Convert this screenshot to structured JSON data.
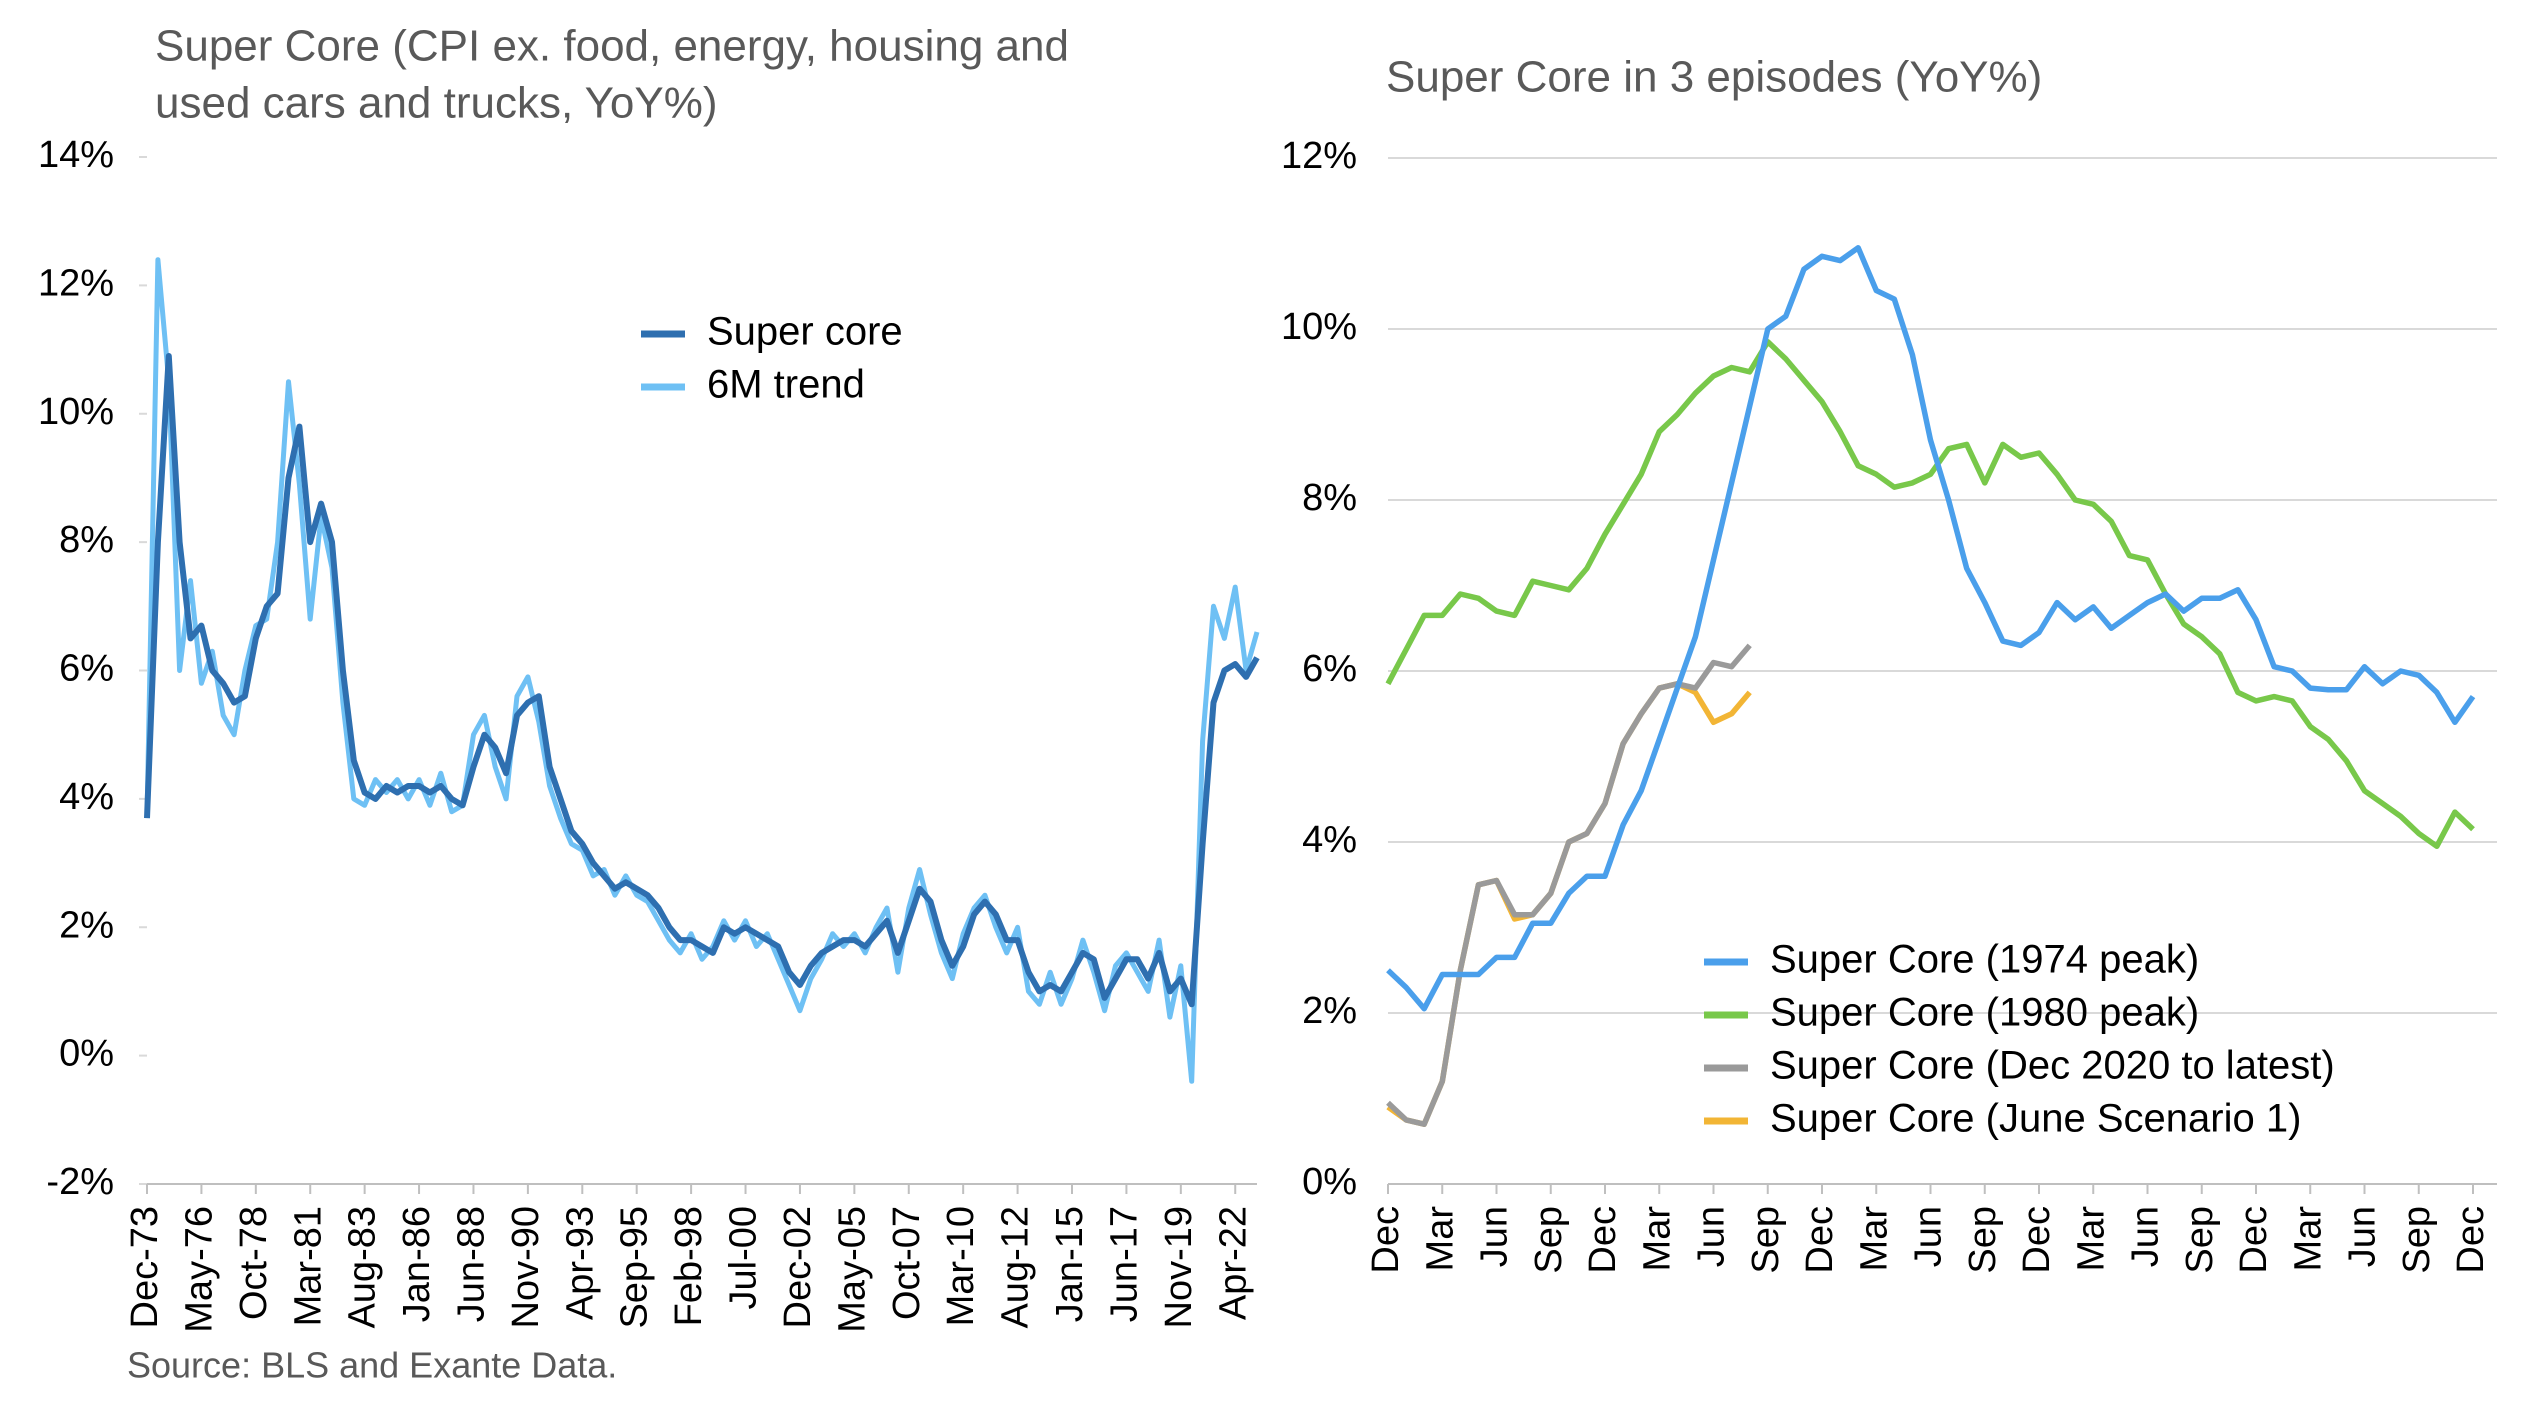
{
  "chart_data": [
    {
      "type": "line",
      "title": [
        "Super Core (CPI ex. food, energy, housing and",
        "used cars and trucks, YoY%)"
      ],
      "categories": [
        "Dec-73",
        null,
        null,
        null,
        null,
        "May-76",
        null,
        null,
        null,
        null,
        "Oct-78",
        null,
        null,
        null,
        null,
        "Mar-81",
        null,
        null,
        null,
        null,
        "Aug-83",
        null,
        null,
        null,
        null,
        "Jan-86",
        null,
        null,
        null,
        null,
        "Jun-88",
        null,
        null,
        null,
        null,
        "Nov-90",
        null,
        null,
        null,
        null,
        "Apr-93",
        null,
        null,
        null,
        null,
        "Sep-95",
        null,
        null,
        null,
        null,
        "Feb-98",
        null,
        null,
        null,
        null,
        "Jul-00",
        null,
        null,
        null,
        null,
        "Dec-02",
        null,
        null,
        null,
        null,
        "May-05",
        null,
        null,
        null,
        null,
        "Oct-07",
        null,
        null,
        null,
        null,
        "Mar-10",
        null,
        null,
        null,
        null,
        "Aug-12",
        null,
        null,
        null,
        null,
        "Jan-15",
        null,
        null,
        null,
        null,
        "Jun-17",
        null,
        null,
        null,
        null,
        "Nov-19",
        null,
        null,
        null,
        null,
        "Apr-22",
        null,
        null
      ],
      "series": [
        {
          "name": "Super core",
          "color": "#2e6fb0",
          "values": [
            3.7,
            8,
            10.9,
            8,
            6.5,
            6.7,
            6.0,
            5.8,
            5.5,
            5.6,
            6.5,
            7.0,
            7.2,
            9.0,
            9.8,
            8.0,
            8.6,
            8.0,
            6.0,
            4.6,
            4.1,
            4.0,
            4.2,
            4.1,
            4.2,
            4.2,
            4.1,
            4.2,
            4.0,
            3.9,
            4.5,
            5.0,
            4.8,
            4.4,
            5.3,
            5.5,
            5.6,
            4.5,
            4.0,
            3.5,
            3.3,
            3.0,
            2.8,
            2.6,
            2.7,
            2.6,
            2.5,
            2.3,
            2.0,
            1.8,
            1.8,
            1.7,
            1.6,
            2.0,
            1.9,
            2.0,
            1.9,
            1.8,
            1.7,
            1.3,
            1.1,
            1.4,
            1.6,
            1.7,
            1.8,
            1.8,
            1.7,
            1.9,
            2.1,
            1.6,
            2.1,
            2.6,
            2.4,
            1.8,
            1.4,
            1.7,
            2.2,
            2.4,
            2.2,
            1.8,
            1.8,
            1.3,
            1.0,
            1.1,
            1.0,
            1.3,
            1.6,
            1.5,
            0.9,
            1.2,
            1.5,
            1.5,
            1.2,
            1.6,
            1.0,
            1.2,
            0.8,
            3.3,
            5.5,
            6.0,
            6.1,
            5.9,
            6.2
          ]
        },
        {
          "name": "6M trend",
          "color": "#6ec0f4",
          "values": [
            3.7,
            12.4,
            10.5,
            6.0,
            7.4,
            5.8,
            6.3,
            5.3,
            5.0,
            6.0,
            6.7,
            6.8,
            8.0,
            10.5,
            8.9,
            6.8,
            8.4,
            7.6,
            5.5,
            4.0,
            3.9,
            4.3,
            4.1,
            4.3,
            4.0,
            4.3,
            3.9,
            4.4,
            3.8,
            3.9,
            5.0,
            5.3,
            4.5,
            4.0,
            5.6,
            5.9,
            5.2,
            4.2,
            3.7,
            3.3,
            3.2,
            2.8,
            2.9,
            2.5,
            2.8,
            2.5,
            2.4,
            2.1,
            1.8,
            1.6,
            1.9,
            1.5,
            1.7,
            2.1,
            1.8,
            2.1,
            1.7,
            1.9,
            1.5,
            1.1,
            0.7,
            1.2,
            1.5,
            1.9,
            1.7,
            1.9,
            1.6,
            2.0,
            2.3,
            1.3,
            2.3,
            2.9,
            2.2,
            1.6,
            1.2,
            1.9,
            2.3,
            2.5,
            2.0,
            1.6,
            2.0,
            1.0,
            0.8,
            1.3,
            0.8,
            1.2,
            1.8,
            1.3,
            0.7,
            1.4,
            1.6,
            1.3,
            1.0,
            1.8,
            0.6,
            1.4,
            -0.4,
            4.9,
            7.0,
            6.5,
            7.3,
            6.0,
            6.6
          ]
        }
      ],
      "ylim": [
        -2,
        14
      ],
      "yticks": [
        {
          "value": -2,
          "label": "-2%"
        },
        {
          "value": 0,
          "label": "0%"
        },
        {
          "value": 2,
          "label": "2%"
        },
        {
          "value": 4,
          "label": "4%"
        },
        {
          "value": 6,
          "label": "6%"
        },
        {
          "value": 8,
          "label": "8%"
        },
        {
          "value": 10,
          "label": "10%"
        },
        {
          "value": 12,
          "label": "12%"
        },
        {
          "value": 14,
          "label": "14%"
        }
      ],
      "grid": false
    },
    {
      "type": "line",
      "title": [
        "Super Core in 3 episodes (YoY%)"
      ],
      "categories": [
        "Dec",
        null,
        null,
        "Mar",
        null,
        null,
        "Jun",
        null,
        null,
        "Sep",
        null,
        null,
        "Dec",
        null,
        null,
        "Mar",
        null,
        null,
        "Jun",
        null,
        null,
        "Sep",
        null,
        null,
        "Dec",
        null,
        null,
        "Mar",
        null,
        null,
        "Jun",
        null,
        null,
        "Sep",
        null,
        null,
        "Dec",
        null,
        null,
        "Mar",
        null,
        null,
        "Jun",
        null,
        null,
        "Sep",
        null,
        null,
        "Dec",
        null,
        null,
        "Mar",
        null,
        null,
        "Jun",
        null,
        null,
        "Sep",
        null,
        null,
        "Dec"
      ],
      "series": [
        {
          "name": "Super Core (1974 peak)",
          "color": "#4a9feb",
          "values": [
            2.5,
            2.3,
            2.05,
            2.45,
            2.45,
            2.45,
            2.65,
            2.65,
            3.05,
            3.05,
            3.4,
            3.6,
            3.6,
            4.2,
            4.6,
            5.2,
            5.8,
            6.4,
            7.3,
            8.2,
            9.1,
            10.0,
            10.15,
            10.7,
            10.85,
            10.8,
            10.95,
            10.45,
            10.35,
            9.7,
            8.7,
            8.0,
            7.2,
            6.8,
            6.35,
            6.3,
            6.45,
            6.8,
            6.6,
            6.75,
            6.5,
            6.65,
            6.8,
            6.9,
            6.7,
            6.85,
            6.85,
            6.95,
            6.6,
            6.05,
            6.0,
            5.8,
            5.78,
            5.78,
            6.05,
            5.85,
            6.0,
            5.95,
            5.75,
            5.4,
            5.7
          ]
        },
        {
          "name": "Super Core (1980 peak)",
          "color": "#78c84a",
          "values": [
            5.85,
            6.25,
            6.65,
            6.65,
            6.9,
            6.85,
            6.7,
            6.65,
            7.05,
            7.0,
            6.95,
            7.2,
            7.6,
            7.95,
            8.3,
            8.8,
            9.0,
            9.25,
            9.45,
            9.55,
            9.5,
            9.85,
            9.65,
            9.4,
            9.15,
            8.8,
            8.4,
            8.3,
            8.15,
            8.2,
            8.3,
            8.6,
            8.65,
            8.2,
            8.65,
            8.5,
            8.55,
            8.3,
            8.0,
            7.95,
            7.75,
            7.35,
            7.3,
            6.9,
            6.55,
            6.4,
            6.2,
            5.75,
            5.65,
            5.7,
            5.65,
            5.35,
            5.2,
            4.95,
            4.6,
            4.45,
            4.3,
            4.1,
            3.95,
            4.35,
            4.15
          ]
        },
        {
          "name": "Super Core (Dec 2020 to latest)",
          "color": "#9a9a9a",
          "values": [
            0.95,
            0.75,
            0.7,
            1.2,
            2.5,
            3.5,
            3.55,
            3.15,
            3.15,
            3.4,
            4.0,
            4.1,
            4.45,
            5.15,
            5.5,
            5.8,
            5.85,
            5.8,
            6.1,
            6.05,
            6.3,
            null,
            null,
            null,
            null,
            null,
            null,
            null,
            null,
            null,
            null,
            null,
            null,
            null,
            null,
            null,
            null,
            null,
            null,
            null,
            null,
            null,
            null,
            null,
            null,
            null,
            null,
            null,
            null,
            null,
            null,
            null,
            null,
            null,
            null,
            null,
            null,
            null,
            null,
            null,
            null
          ]
        },
        {
          "name": "Super Core (June Scenario 1)",
          "color": "#f2b535",
          "values": [
            0.9,
            0.75,
            0.7,
            1.2,
            2.5,
            3.5,
            3.55,
            3.1,
            3.15,
            3.4,
            4.0,
            4.1,
            4.45,
            5.15,
            5.5,
            5.8,
            5.85,
            5.75,
            5.4,
            5.5,
            5.75,
            null,
            null,
            null,
            null,
            null,
            null,
            null,
            null,
            null,
            null,
            null,
            null,
            null,
            null,
            null,
            null,
            null,
            null,
            null,
            null,
            null,
            null,
            null,
            null,
            null,
            null,
            null,
            null,
            null,
            null,
            null,
            null,
            null,
            null,
            null,
            null,
            null,
            null,
            null,
            null
          ]
        }
      ],
      "ylim": [
        0,
        12
      ],
      "yticks": [
        {
          "value": 0,
          "label": "0%"
        },
        {
          "value": 2,
          "label": "2%"
        },
        {
          "value": 4,
          "label": "4%"
        },
        {
          "value": 6,
          "label": "6%"
        },
        {
          "value": 8,
          "label": "8%"
        },
        {
          "value": 10,
          "label": "10%"
        },
        {
          "value": 12,
          "label": "12%"
        }
      ],
      "grid": true
    }
  ],
  "source": "Source: BLS and Exante Data."
}
